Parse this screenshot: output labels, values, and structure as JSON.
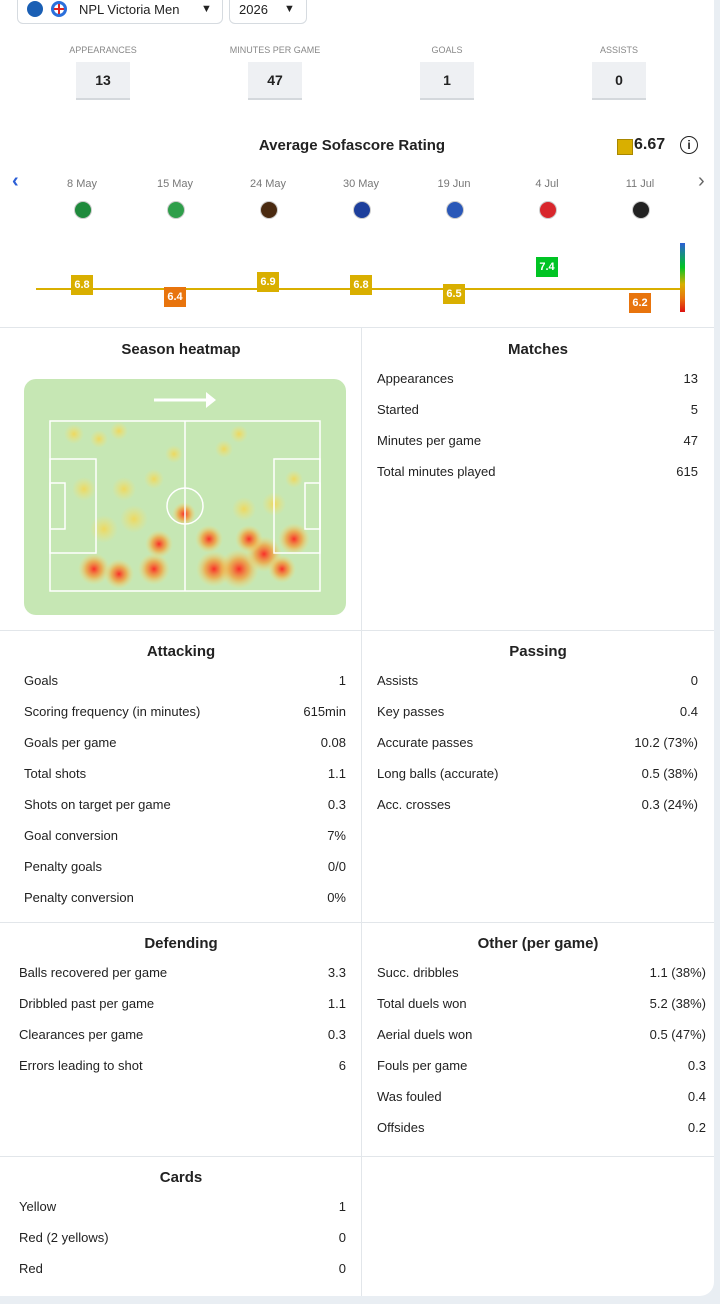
{
  "header": {
    "competition": "NPL Victoria Men",
    "season": "2026"
  },
  "summary": [
    {
      "label": "APPEARANCES",
      "value": "13"
    },
    {
      "label": "MINUTES PER GAME",
      "value": "47"
    },
    {
      "label": "GOALS",
      "value": "1"
    },
    {
      "label": "ASSISTS",
      "value": "0"
    }
  ],
  "rating": {
    "title": "Average Sofascore Rating",
    "average": 6.67,
    "matches": [
      {
        "date": "8 May",
        "rating": 6.8
      },
      {
        "date": "15 May",
        "rating": 6.4
      },
      {
        "date": "24 May",
        "rating": 6.9
      },
      {
        "date": "30 May",
        "rating": 6.8
      },
      {
        "date": "19 Jun",
        "rating": 6.5
      },
      {
        "date": "4 Jul",
        "rating": 7.4
      },
      {
        "date": "11 Jul",
        "rating": 6.2
      }
    ]
  },
  "heatmap": {
    "title": "Season heatmap"
  },
  "sections": [
    {
      "title": "Matches",
      "rows": [
        [
          "Appearances",
          "13"
        ],
        [
          "Started",
          "5"
        ],
        [
          "Minutes per game",
          "47"
        ],
        [
          "Total minutes played",
          "615"
        ]
      ]
    },
    {
      "title": "Attacking",
      "rows": [
        [
          "Goals",
          "1"
        ],
        [
          "Scoring frequency (in minutes)",
          "615min"
        ],
        [
          "Goals per game",
          "0.08"
        ],
        [
          "Total shots",
          "1.1"
        ],
        [
          "Shots on target per game",
          "0.3"
        ],
        [
          "Goal conversion",
          "7%"
        ],
        [
          "Penalty goals",
          "0/0"
        ],
        [
          "Penalty conversion",
          "0%"
        ]
      ]
    },
    {
      "title": "Passing",
      "rows": [
        [
          "Assists",
          "0"
        ],
        [
          "Key passes",
          "0.4"
        ],
        [
          "Accurate passes",
          "10.2 (73%)"
        ],
        [
          "Long balls (accurate)",
          "0.5 (38%)"
        ],
        [
          "Acc. crosses",
          "0.3 (24%)"
        ]
      ]
    },
    {
      "title": "Defending",
      "rows": [
        [
          "Balls recovered per game",
          "3.3"
        ],
        [
          "Dribbled past per game",
          "1.1"
        ],
        [
          "Clearances per game",
          "0.3"
        ],
        [
          "Errors leading to shot",
          "6"
        ]
      ]
    },
    {
      "title": "Other (per game)",
      "rows": [
        [
          "Succ. dribbles",
          "1.1 (38%)"
        ],
        [
          "Total duels won",
          "5.2 (38%)"
        ],
        [
          "Aerial duels won",
          "0.5 (47%)"
        ],
        [
          "Fouls per game",
          "0.3"
        ],
        [
          "Was fouled",
          "0.4"
        ],
        [
          "Offsides",
          "0.2"
        ]
      ]
    },
    {
      "title": "Cards",
      "rows": [
        [
          "Yellow",
          "1"
        ],
        [
          "Red (2 yellows)",
          "0"
        ],
        [
          "Red",
          "0"
        ]
      ]
    }
  ]
}
